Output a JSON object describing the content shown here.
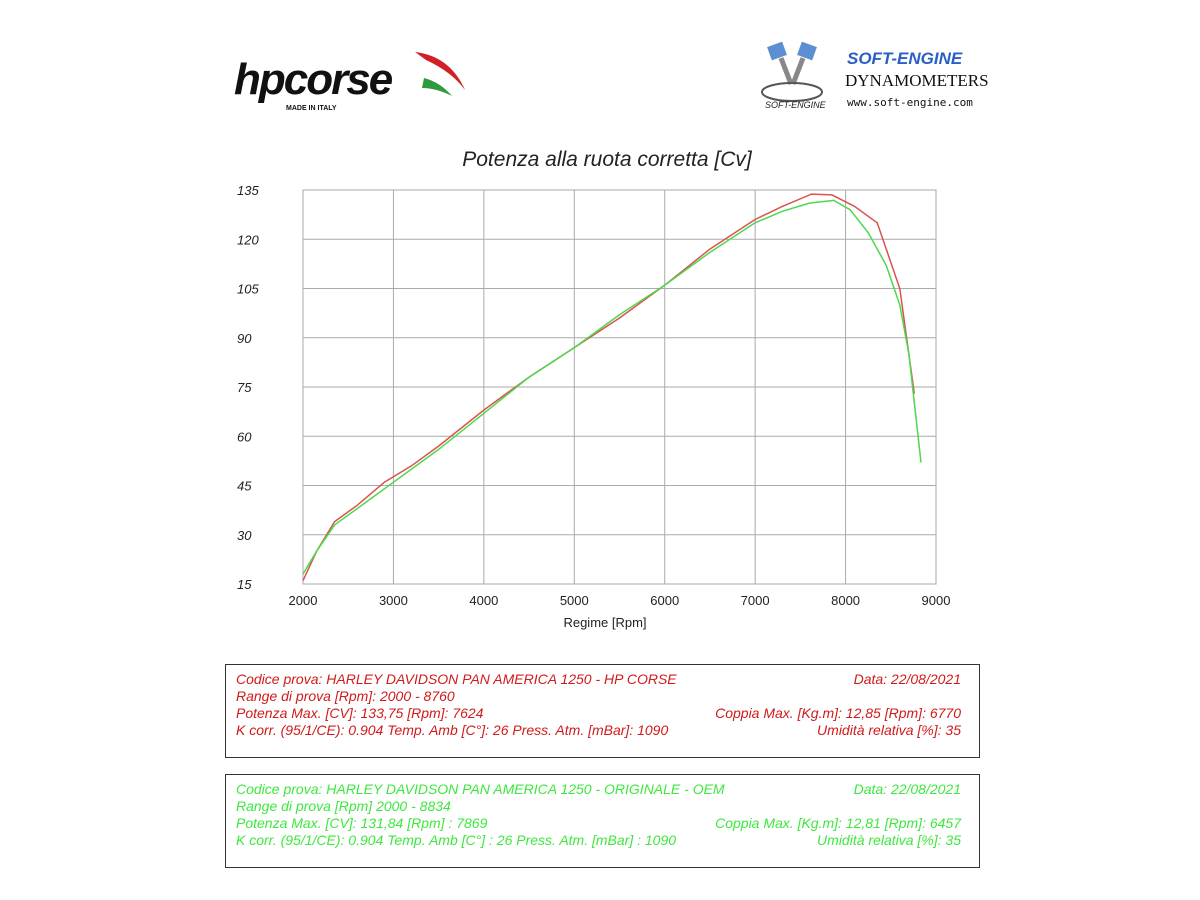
{
  "logos": {
    "hp_brand": "hpcorse",
    "hp_sub": "MADE IN ITALY",
    "se_brand": "SOFT-ENGINE",
    "se_line": "DYNAMOMETERS",
    "se_url": "www.soft-engine.com",
    "se_mark": "SOFT-ENGINE"
  },
  "chart_data": {
    "type": "line",
    "title": "Potenza alla ruota corretta [Cv]",
    "xlabel": "Regime [Rpm]",
    "ylabel": "",
    "xlim": [
      2000,
      9000
    ],
    "ylim": [
      15,
      135
    ],
    "xticks": [
      2000,
      3000,
      4000,
      5000,
      6000,
      7000,
      8000,
      9000
    ],
    "yticks": [
      15,
      30,
      45,
      60,
      75,
      90,
      105,
      120,
      135
    ],
    "grid": true,
    "series": [
      {
        "color": "#d9534f",
        "x": [
          2000,
          2150,
          2350,
          2600,
          2900,
          3200,
          3500,
          4000,
          4500,
          5000,
          5500,
          6000,
          6500,
          7000,
          7300,
          7624,
          7850,
          8100,
          8350,
          8600,
          8760
        ],
        "y": [
          16,
          25,
          34,
          39,
          46,
          51,
          57,
          68,
          78,
          87,
          96,
          106,
          117,
          126,
          130,
          133.75,
          133.5,
          130,
          125,
          105,
          73
        ]
      },
      {
        "color": "#4dd84d",
        "x": [
          2000,
          2150,
          2350,
          2600,
          2900,
          3200,
          3500,
          4000,
          4500,
          5000,
          5500,
          6000,
          6500,
          7000,
          7300,
          7600,
          7869,
          8050,
          8250,
          8450,
          8600,
          8700,
          8834
        ],
        "y": [
          18,
          25,
          33,
          38,
          44,
          50,
          56,
          67,
          78,
          87,
          97,
          106,
          116,
          125,
          128.5,
          131,
          131.84,
          129,
          122,
          112,
          100,
          85,
          52
        ]
      }
    ]
  },
  "test_hp": {
    "codice": "Codice prova: HARLEY DAVIDSON  PAN AMERICA 1250 - HP CORSE",
    "data": "Data: 22/08/2021",
    "range": "Range di prova  [Rpm]: 2000 - 8760",
    "potenza": "Potenza Max. [CV]:  133,75 [Rpm]:  7624",
    "coppia": "Coppia Max. [Kg.m]:  12,85 [Rpm]:  6770",
    "kcorr": "K corr. (95/1/CE): 0.904    Temp. Amb [C°]: 26       Press. Atm. [mBar]: 1090",
    "umidita": "Umidità relativa [%]: 35"
  },
  "test_oem": {
    "codice": "Codice prova: HARLEY DAVIDSON  PAN AMERICA 1250 - ORIGINALE - OEM",
    "data": "Data: 22/08/2021",
    "range": "Range di prova [Rpm] 2000 - 8834",
    "potenza": "Potenza Max. [CV]:  131,84 [Rpm] : 7869",
    "coppia": "Coppia Max. [Kg.m]:  12,81 [Rpm]: 6457",
    "kcorr": "K corr. (95/1/CE): 0.904   Temp. Amb [C°] : 26       Press. Atm. [mBar] : 1090",
    "umidita": "Umidità relativa [%]: 35"
  }
}
